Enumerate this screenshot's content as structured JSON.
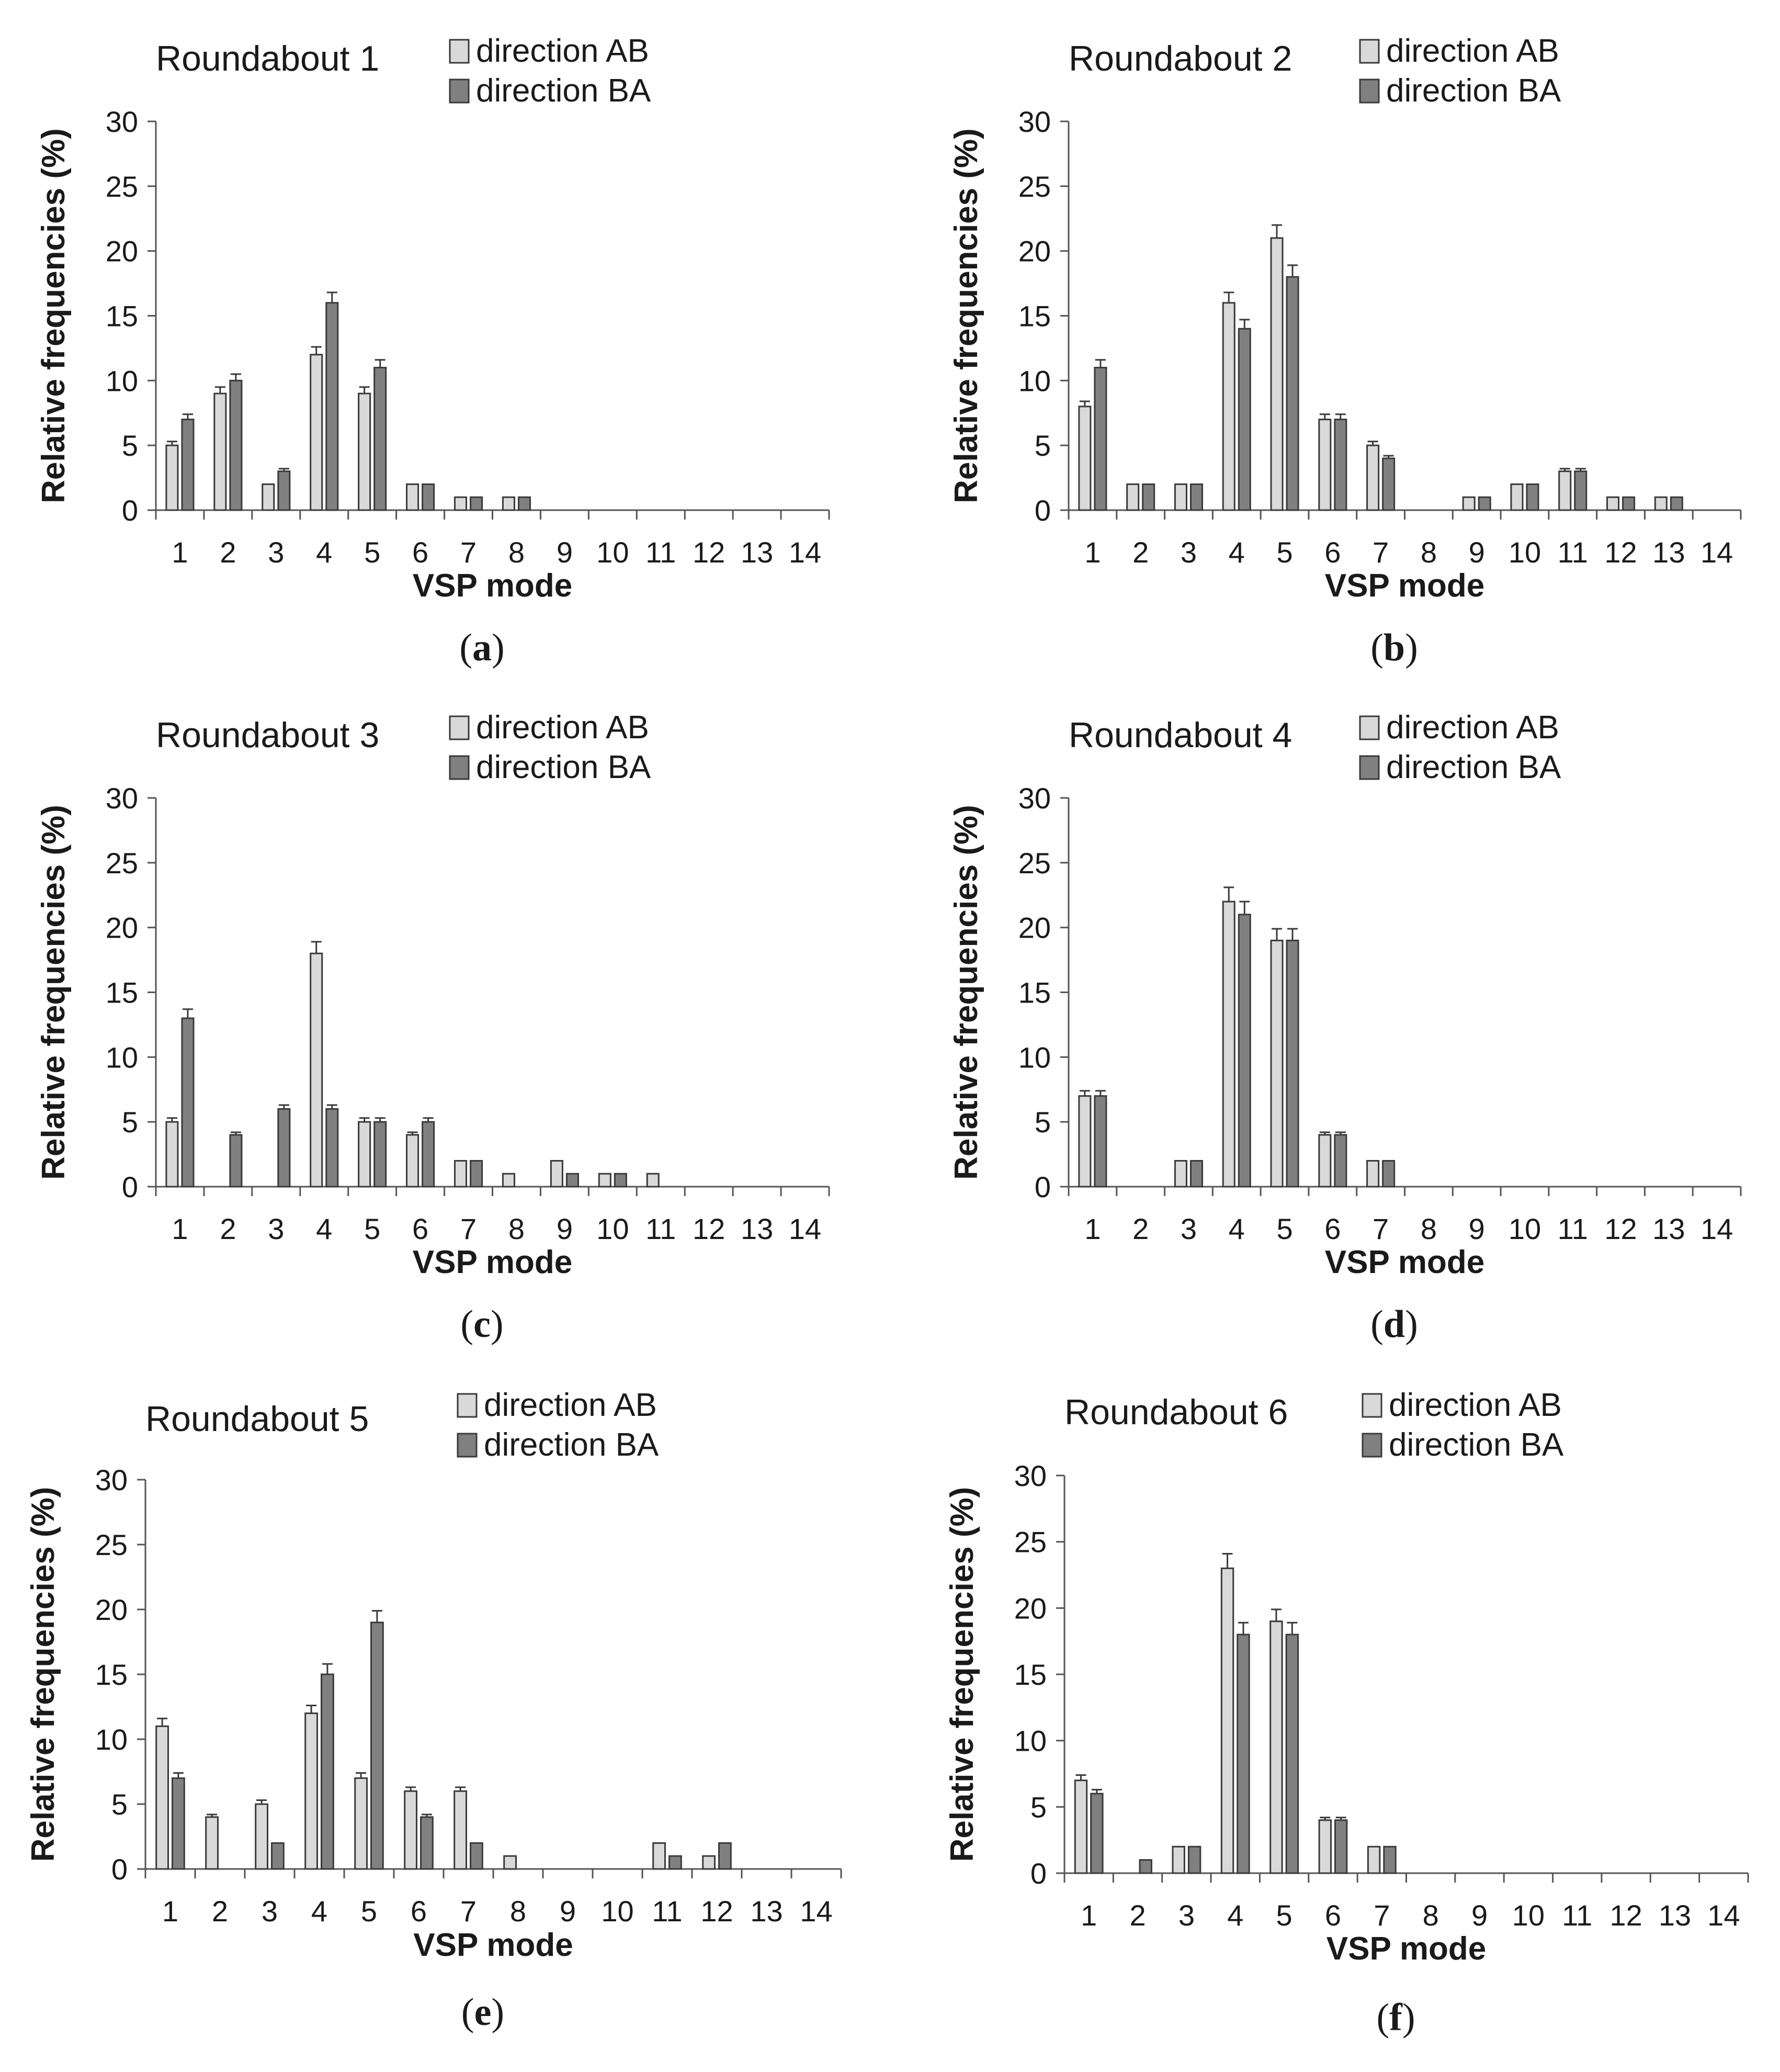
{
  "colors": {
    "ab": "#d9d9d9",
    "ba": "#808080",
    "outline": "#3a3a3a",
    "axis": "#555555",
    "text": "#1a1a1a"
  },
  "chart_data": [
    {
      "type": "bar",
      "panel_label": "a",
      "title": "Roundabout 1",
      "xlabel": "VSP mode",
      "ylabel": "Relative frequencies (%)",
      "ylim": [
        0,
        30
      ],
      "yticks": [
        "0",
        "5",
        "10",
        "15",
        "20",
        "25",
        "30"
      ],
      "categories": [
        "1",
        "2",
        "3",
        "4",
        "5",
        "6",
        "7",
        "8",
        "9",
        "10",
        "11",
        "12",
        "13",
        "14"
      ],
      "series": [
        {
          "name": "direction AB",
          "values": [
            5,
            9,
            2,
            12,
            9,
            2,
            1,
            1,
            0,
            0,
            0,
            0,
            0,
            0
          ],
          "errors": [
            0.3,
            0.5,
            0,
            0.6,
            0.5,
            0,
            0,
            0,
            0,
            0,
            0,
            0,
            0,
            0
          ]
        },
        {
          "name": "direction BA",
          "values": [
            7,
            10,
            3,
            16,
            11,
            2,
            1,
            1,
            0,
            0,
            0,
            0,
            0,
            0
          ],
          "errors": [
            0.4,
            0.5,
            0.2,
            0.8,
            0.6,
            0,
            0,
            0,
            0,
            0,
            0,
            0,
            0,
            0
          ]
        }
      ]
    },
    {
      "type": "bar",
      "panel_label": "b",
      "title": "Roundabout 2",
      "xlabel": "VSP mode",
      "ylabel": "Relative frequencies (%)",
      "ylim": [
        0,
        30
      ],
      "yticks": [
        "0",
        "5",
        "10",
        "15",
        "20",
        "25",
        "30"
      ],
      "categories": [
        "1",
        "2",
        "3",
        "4",
        "5",
        "6",
        "7",
        "8",
        "9",
        "10",
        "11",
        "12",
        "13",
        "14"
      ],
      "series": [
        {
          "name": "direction AB",
          "values": [
            8,
            2,
            2,
            16,
            21,
            7,
            5,
            0,
            1,
            2,
            3,
            1,
            1,
            0
          ],
          "errors": [
            0.4,
            0,
            0,
            0.8,
            1.0,
            0.4,
            0.3,
            0,
            0,
            0,
            0.2,
            0,
            0,
            0
          ]
        },
        {
          "name": "direction BA",
          "values": [
            11,
            2,
            2,
            14,
            18,
            7,
            4,
            0,
            1,
            2,
            3,
            1,
            1,
            0
          ],
          "errors": [
            0.6,
            0,
            0,
            0.7,
            0.9,
            0.4,
            0.2,
            0,
            0,
            0,
            0.2,
            0,
            0,
            0
          ]
        }
      ]
    },
    {
      "type": "bar",
      "panel_label": "c",
      "title": "Roundabout 3",
      "xlabel": "VSP mode",
      "ylabel": "Relative frequencies (%)",
      "ylim": [
        0,
        30
      ],
      "yticks": [
        "0",
        "5",
        "10",
        "15",
        "20",
        "25",
        "30"
      ],
      "categories": [
        "1",
        "2",
        "3",
        "4",
        "5",
        "6",
        "7",
        "8",
        "9",
        "10",
        "11",
        "12",
        "13",
        "14"
      ],
      "series": [
        {
          "name": "direction AB",
          "values": [
            5,
            0,
            0,
            18,
            5,
            4,
            2,
            1,
            2,
            1,
            1,
            0,
            0,
            0
          ],
          "errors": [
            0.3,
            0,
            0,
            0.9,
            0.3,
            0.2,
            0,
            0,
            0,
            0,
            0,
            0,
            0,
            0
          ]
        },
        {
          "name": "direction BA",
          "values": [
            13,
            4,
            6,
            6,
            5,
            5,
            2,
            0,
            1,
            1,
            0,
            0,
            0,
            0
          ],
          "errors": [
            0.7,
            0.2,
            0.3,
            0.3,
            0.3,
            0.3,
            0,
            0,
            0,
            0,
            0,
            0,
            0,
            0
          ]
        }
      ]
    },
    {
      "type": "bar",
      "panel_label": "d",
      "title": "Roundabout 4",
      "xlabel": "VSP mode",
      "ylabel": "Relative frequencies (%)",
      "ylim": [
        0,
        30
      ],
      "yticks": [
        "0",
        "5",
        "10",
        "15",
        "20",
        "25",
        "30"
      ],
      "categories": [
        "1",
        "2",
        "3",
        "4",
        "5",
        "6",
        "7",
        "8",
        "9",
        "10",
        "11",
        "12",
        "13",
        "14"
      ],
      "series": [
        {
          "name": "direction AB",
          "values": [
            7,
            0,
            2,
            22,
            19,
            4,
            2,
            0,
            0,
            0,
            0,
            0,
            0,
            0
          ],
          "errors": [
            0.4,
            0,
            0,
            1.1,
            0.9,
            0.2,
            0,
            0,
            0,
            0,
            0,
            0,
            0,
            0
          ]
        },
        {
          "name": "direction BA",
          "values": [
            7,
            0,
            2,
            21,
            19,
            4,
            2,
            0,
            0,
            0,
            0,
            0,
            0,
            0
          ],
          "errors": [
            0.4,
            0,
            0,
            1.0,
            0.9,
            0.2,
            0,
            0,
            0,
            0,
            0,
            0,
            0,
            0
          ]
        }
      ]
    },
    {
      "type": "bar",
      "panel_label": "e",
      "title": "Roundabout 5",
      "xlabel": "VSP mode",
      "ylabel": "Relative frequencies (%)",
      "ylim": [
        0,
        30
      ],
      "yticks": [
        "0",
        "5",
        "10",
        "15",
        "20",
        "25",
        "30"
      ],
      "categories": [
        "1",
        "2",
        "3",
        "4",
        "5",
        "6",
        "7",
        "8",
        "9",
        "10",
        "11",
        "12",
        "13",
        "14"
      ],
      "series": [
        {
          "name": "direction AB",
          "values": [
            11,
            4,
            5,
            12,
            7,
            6,
            6,
            1,
            0,
            0,
            2,
            1,
            0,
            0
          ],
          "errors": [
            0.6,
            0.2,
            0.3,
            0.6,
            0.4,
            0.3,
            0.3,
            0,
            0,
            0,
            0,
            0,
            0,
            0
          ]
        },
        {
          "name": "direction BA",
          "values": [
            7,
            0,
            2,
            15,
            19,
            4,
            2,
            0,
            0,
            0,
            1,
            2,
            0,
            0
          ],
          "errors": [
            0.4,
            0,
            0,
            0.8,
            0.9,
            0.2,
            0,
            0,
            0,
            0,
            0,
            0,
            0,
            0
          ]
        }
      ]
    },
    {
      "type": "bar",
      "panel_label": "f",
      "title": "Roundabout 6",
      "xlabel": "VSP mode",
      "ylabel": "Relative frequencies (%)",
      "ylim": [
        0,
        30
      ],
      "yticks": [
        "0",
        "5",
        "10",
        "15",
        "20",
        "25",
        "30"
      ],
      "categories": [
        "1",
        "2",
        "3",
        "4",
        "5",
        "6",
        "7",
        "8",
        "9",
        "10",
        "11",
        "12",
        "13",
        "14"
      ],
      "series": [
        {
          "name": "direction AB",
          "values": [
            7,
            0,
            2,
            23,
            19,
            4,
            2,
            0,
            0,
            0,
            0,
            0,
            0,
            0
          ],
          "errors": [
            0.4,
            0,
            0,
            1.1,
            0.9,
            0.2,
            0,
            0,
            0,
            0,
            0,
            0,
            0,
            0
          ]
        },
        {
          "name": "direction BA",
          "values": [
            6,
            1,
            2,
            18,
            18,
            4,
            2,
            0,
            0,
            0,
            0,
            0,
            0,
            0
          ],
          "errors": [
            0.3,
            0,
            0,
            0.9,
            0.9,
            0.2,
            0,
            0,
            0,
            0,
            0,
            0,
            0,
            0
          ]
        }
      ]
    }
  ]
}
